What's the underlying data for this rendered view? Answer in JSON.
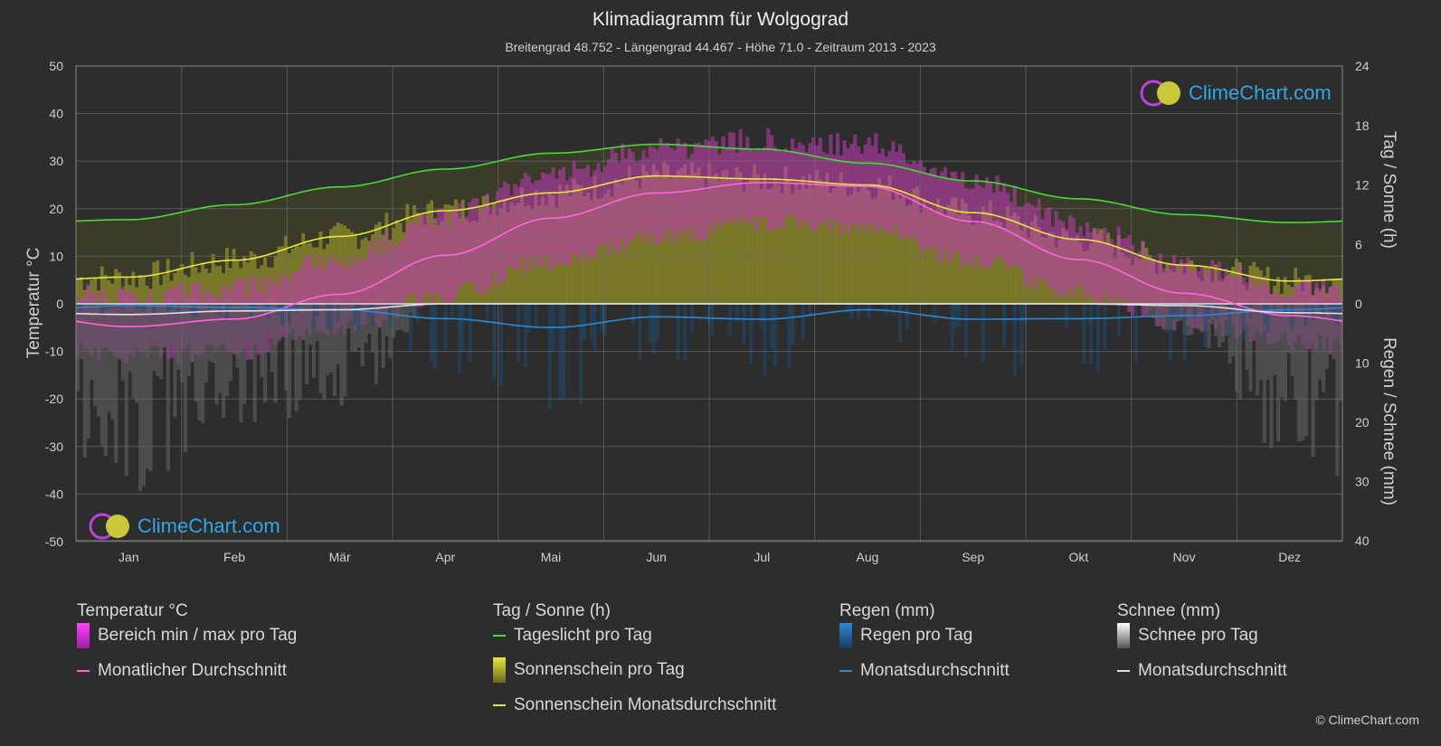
{
  "header": {
    "title": "Klimadiagramm für Wolgograd",
    "subtitle": "Breitengrad 48.752 - Längengrad 44.467 - Höhe 71.0 - Zeitraum 2013 - 2023"
  },
  "logo_text": "ClimeChart.com",
  "copyright": "© ClimeChart.com",
  "chart_data": {
    "type": "line",
    "categories": [
      "Jan",
      "Feb",
      "Mär",
      "Apr",
      "Mai",
      "Jun",
      "Jul",
      "Aug",
      "Sep",
      "Okt",
      "Nov",
      "Dez"
    ],
    "y_left": {
      "label": "Temperatur °C",
      "range": [
        -50,
        50
      ],
      "ticks": [
        50,
        40,
        30,
        20,
        10,
        0,
        -10,
        -20,
        -30,
        -40,
        -50
      ]
    },
    "y_right_top": {
      "label": "Tag / Sonne (h)",
      "range": [
        0,
        24
      ],
      "ticks": [
        24,
        18,
        12,
        6,
        0
      ]
    },
    "y_right_bottom": {
      "label": "Regen / Schnee (mm)",
      "range": [
        0,
        40
      ],
      "ticks": [
        0,
        10,
        20,
        30,
        40
      ]
    },
    "grid": true,
    "series": [
      {
        "name": "Tageslicht pro Tag",
        "axis": "hours",
        "values": [
          8.5,
          10.0,
          11.8,
          13.6,
          15.2,
          16.1,
          15.6,
          14.2,
          12.4,
          10.6,
          9.0,
          8.2
        ]
      },
      {
        "name": "Sonnenschein Monatsdurchschnitt",
        "axis": "hours",
        "values": [
          2.7,
          4.4,
          6.8,
          9.4,
          11.2,
          12.9,
          12.6,
          12.0,
          9.2,
          6.5,
          3.9,
          2.3
        ]
      },
      {
        "name": "Monatlicher Durchschnitt",
        "axis": "temperature",
        "values": [
          -4.8,
          -3.2,
          2.0,
          10.2,
          18.0,
          23.3,
          25.5,
          24.7,
          17.3,
          9.3,
          2.2,
          -2.5
        ]
      },
      {
        "name": "Regen Monatsdurchschnitt",
        "axis": "precip",
        "values": [
          0.3,
          0.6,
          1.0,
          2.5,
          4.0,
          2.2,
          2.6,
          1.0,
          2.6,
          2.5,
          2.0,
          1.0
        ]
      },
      {
        "name": "Schnee Monatsdurchschnitt",
        "axis": "precip",
        "values": [
          1.8,
          1.2,
          1.0,
          0.0,
          0.0,
          0.0,
          0.0,
          0.0,
          0.0,
          0.0,
          0.3,
          1.5
        ]
      }
    ],
    "range_min_max_per_day": {
      "name": "Bereich min / max pro Tag",
      "min": [
        -9,
        -8,
        -3,
        4,
        11,
        16,
        19,
        18,
        11,
        4,
        -2,
        -6
      ],
      "max": [
        -1,
        1,
        7,
        16,
        25,
        30,
        32,
        31,
        24,
        14,
        6,
        1
      ]
    }
  },
  "legend": {
    "temperature": {
      "title": "Temperatur °C",
      "items": [
        "Bereich min / max pro Tag",
        "Monatlicher Durchschnitt"
      ]
    },
    "sun": {
      "title": "Tag / Sonne (h)",
      "items": [
        "Tageslicht pro Tag",
        "Sonnenschein pro Tag",
        "Sonnenschein Monatsdurchschnitt"
      ]
    },
    "rain": {
      "title": "Regen (mm)",
      "items": [
        "Regen pro Tag",
        "Monatsdurchschnitt"
      ]
    },
    "snow": {
      "title": "Schnee (mm)",
      "items": [
        "Schnee pro Tag",
        "Monatsdurchschnitt"
      ]
    }
  },
  "colors": {
    "daylight": "#44dd33",
    "sunshine_avg": "#e8e83a",
    "sunshine_fill": "#8f8f2a",
    "temp_avg": "#ff66dd",
    "temp_range": "#c23ab8",
    "rain": "#2a8ad8",
    "snow": "#d0d0d0"
  }
}
